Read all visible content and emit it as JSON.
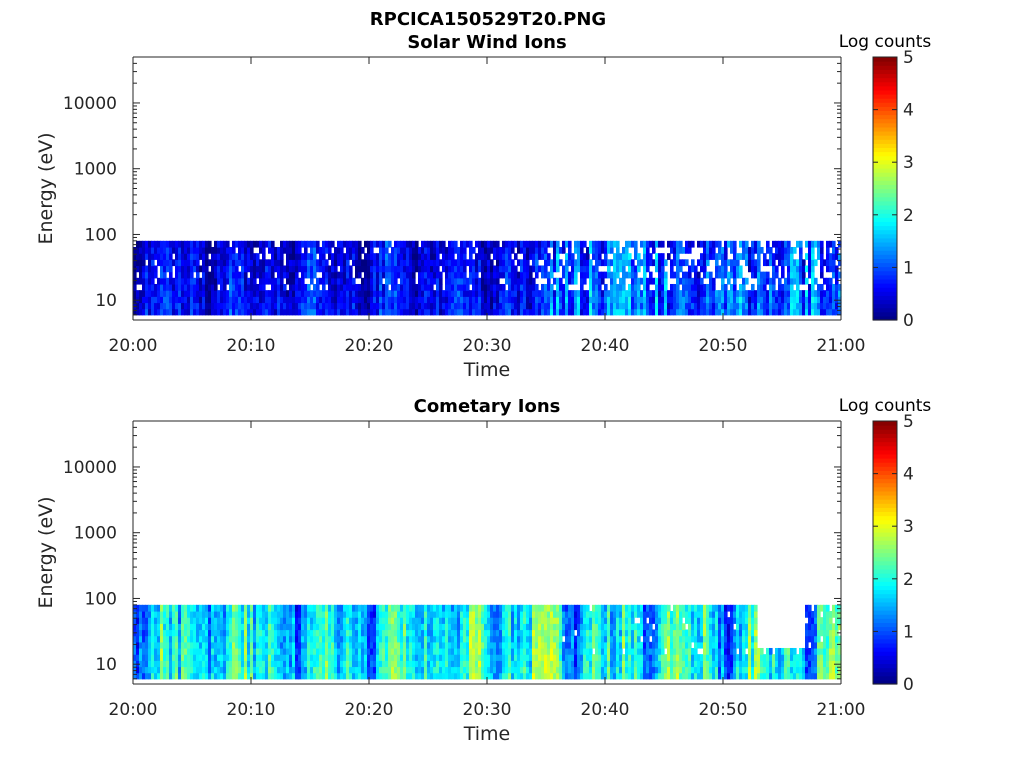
{
  "figure_title": "RPCICA150529T20.PNG",
  "chart_data": [
    {
      "type": "heatmap",
      "title": "Solar Wind Ions",
      "xlabel": "Time",
      "ylabel": "Energy (eV)",
      "x_ticks": [
        "20:00",
        "20:10",
        "20:20",
        "20:30",
        "20:40",
        "20:50",
        "21:00"
      ],
      "xlim": [
        "20:00",
        "21:00"
      ],
      "y_scale": "log",
      "ylim": [
        5,
        50000
      ],
      "y_ticks": [
        "10",
        "100",
        "1000",
        "10000"
      ],
      "y_tick_values": [
        10,
        100,
        1000,
        10000
      ],
      "data_energy_range_eV": [
        6,
        80
      ],
      "colorbar": {
        "label": "Log counts",
        "min": 0,
        "max": 5,
        "ticks": [
          "0",
          "1",
          "2",
          "3",
          "4",
          "5"
        ],
        "colormap": "jet"
      },
      "typical_log_counts": [
        0.3,
        1.0
      ],
      "late_interval_activity": {
        "from": "20:35",
        "to": "21:00",
        "typical_log_counts": [
          0.5,
          1.8
        ]
      }
    },
    {
      "type": "heatmap",
      "title": "Cometary Ions",
      "xlabel": "Time",
      "ylabel": "Energy (eV)",
      "x_ticks": [
        "20:00",
        "20:10",
        "20:20",
        "20:30",
        "20:40",
        "20:50",
        "21:00"
      ],
      "xlim": [
        "20:00",
        "21:00"
      ],
      "y_scale": "log",
      "ylim": [
        5,
        50000
      ],
      "y_ticks": [
        "10",
        "100",
        "1000",
        "10000"
      ],
      "y_tick_values": [
        10,
        100,
        1000,
        10000
      ],
      "data_energy_range_eV": [
        6,
        80
      ],
      "colorbar": {
        "label": "Log counts",
        "min": 0,
        "max": 5,
        "ticks": [
          "0",
          "1",
          "2",
          "3",
          "4",
          "5"
        ],
        "colormap": "jet"
      },
      "typical_log_counts": [
        1.2,
        2.6
      ],
      "peak": {
        "time": "20:35",
        "log_counts": 3.0
      },
      "gap_interval": {
        "from": "20:53",
        "to": "20:57"
      }
    }
  ]
}
